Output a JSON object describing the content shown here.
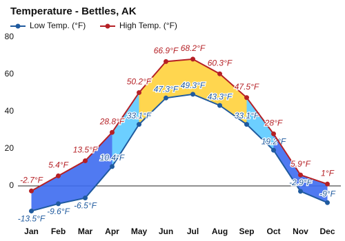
{
  "chart_data": {
    "type": "line",
    "title": "Temperature - Bettles, AK",
    "categories": [
      "Jan",
      "Feb",
      "Mar",
      "Apr",
      "May",
      "Jun",
      "Jul",
      "Aug",
      "Sep",
      "Oct",
      "Nov",
      "Dec"
    ],
    "series": [
      {
        "name": "Low Temp. (°F)",
        "color": "#1f5a9e",
        "values": [
          -13.5,
          -9.6,
          -6.5,
          10.4,
          33.1,
          47.3,
          49.3,
          43.3,
          33.1,
          19.2,
          -2.9,
          -9
        ],
        "value_labels": [
          "-13.5°F",
          "-9.6°F",
          "-6.5°F",
          "10.4°F",
          "33.1°F",
          "47.3°F",
          "49.3°F",
          "43.3°F",
          "33.1°F",
          "19.2°F",
          "-2.9°F",
          "-9°F"
        ]
      },
      {
        "name": "High Temp. (°F)",
        "color": "#b52025",
        "values": [
          -2.7,
          5.4,
          13.5,
          28.8,
          50.2,
          66.9,
          68.2,
          60.3,
          47.5,
          28,
          5.9,
          1
        ],
        "value_labels": [
          "-2.7°F",
          "5.4°F",
          "13.5°F",
          "28.8°F",
          "50.2°F",
          "66.9°F",
          "68.2°F",
          "60.3°F",
          "47.5°F",
          "28°F",
          "5.9°F",
          "1°F"
        ]
      }
    ],
    "ylim": [
      -20,
      80
    ],
    "yticks": [
      0,
      20,
      40,
      60,
      80
    ],
    "grid": false
  }
}
